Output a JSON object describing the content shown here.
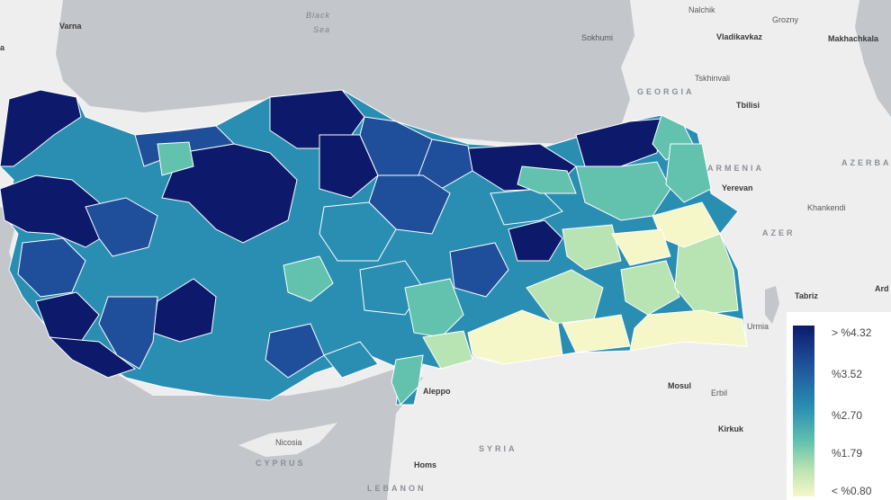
{
  "labels": {
    "black_sea_1": "Black",
    "black_sea_2": "Sea",
    "georgia": "GEORGIA",
    "armenia": "ARMENIA",
    "azerbaijan": "AZERBA",
    "azer": "AZER",
    "syria": "SYRIA",
    "cyprus": "CYPRUS",
    "lebanon": "LEBANON",
    "varna": "Varna",
    "nalchik": "Nalchik",
    "grozny": "Grozny",
    "vladikavkaz": "Vladikavkaz",
    "makhachkala": "Makhachkala",
    "sukhumi": "Sokhumi",
    "tskhinvali": "Tskhinvali",
    "tbilisi": "Tbilisi",
    "yerevan": "Yerevan",
    "khankendi": "Khankendi",
    "tabriz": "Tabriz",
    "ardabil": "Ard",
    "urmia": "Urmia",
    "aleppo": "Aleppo",
    "mosul": "Mosul",
    "erbil": "Erbil",
    "kirkuk": "Kirkuk",
    "nicosia": "Nicosia",
    "homs": "Homs",
    "edge_label": "a"
  },
  "legend": {
    "ticks": [
      "> %4.32",
      "%3.52",
      "%2.70",
      "%1.79",
      "< %0.80"
    ]
  },
  "colors": {
    "darkest": "#0d1a6b",
    "dark": "#1f4f9a",
    "mid": "#2a8eb2",
    "teal": "#62c2ae",
    "light": "#b8e3b2",
    "lightest": "#f6f7c8"
  }
}
